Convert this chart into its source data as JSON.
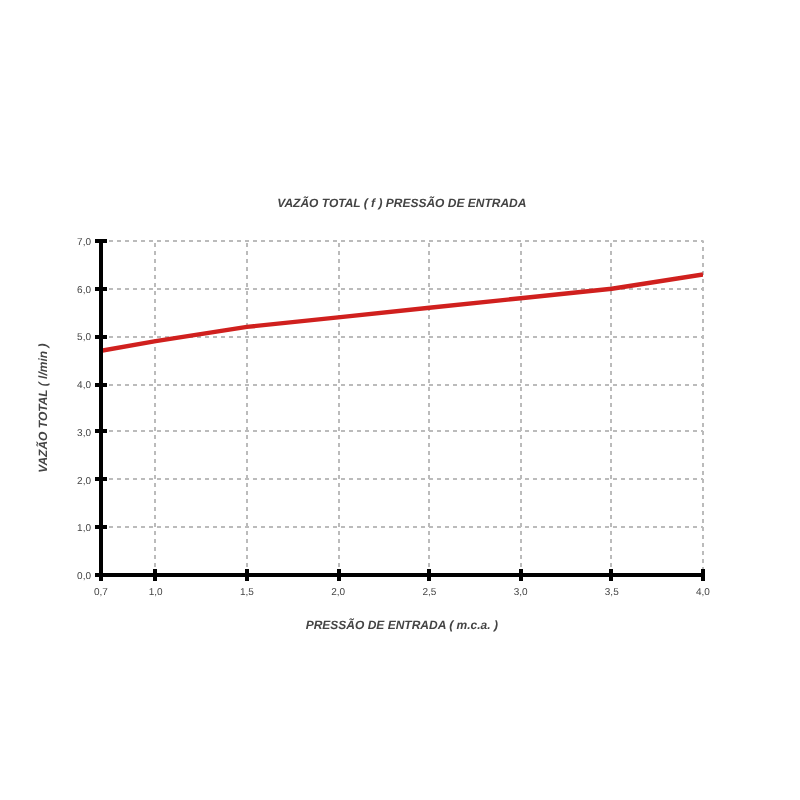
{
  "chart_data": {
    "type": "line",
    "title": "VAZÃO TOTAL ( f ) PRESSÃO DE ENTRADA",
    "xlabel": "PRESSÃO DE ENTRADA ( m.c.a. )",
    "ylabel": "VAZÃO TOTAL ( l/min )",
    "x": [
      0.7,
      1.0,
      1.5,
      2.0,
      2.5,
      3.0,
      3.5,
      4.0
    ],
    "series": [
      {
        "color": "#d0201e",
        "values": [
          4.7,
          4.9,
          5.2,
          5.4,
          5.6,
          5.8,
          6.0,
          6.3
        ]
      }
    ],
    "xlim": [
      0.7,
      4.0
    ],
    "ylim": [
      0,
      7
    ],
    "xticks": [
      {
        "value": 0.7,
        "label": "0,7"
      },
      {
        "value": 1.0,
        "label": "1,0"
      },
      {
        "value": 1.5,
        "label": "1,5"
      },
      {
        "value": 2.0,
        "label": "2,0"
      },
      {
        "value": 2.5,
        "label": "2,5"
      },
      {
        "value": 3.0,
        "label": "3,0"
      },
      {
        "value": 3.5,
        "label": "3,5"
      },
      {
        "value": 4.0,
        "label": "4,0"
      }
    ],
    "yticks": [
      {
        "value": 0,
        "label": "0,0"
      },
      {
        "value": 1,
        "label": "1,0"
      },
      {
        "value": 2,
        "label": "2,0"
      },
      {
        "value": 3,
        "label": "3,0"
      },
      {
        "value": 4,
        "label": "4,0"
      },
      {
        "value": 5,
        "label": "5,0"
      },
      {
        "value": 6,
        "label": "6,0"
      },
      {
        "value": 7,
        "label": "7,0"
      }
    ],
    "grid": true,
    "marker": "none",
    "line_style": "solid"
  }
}
